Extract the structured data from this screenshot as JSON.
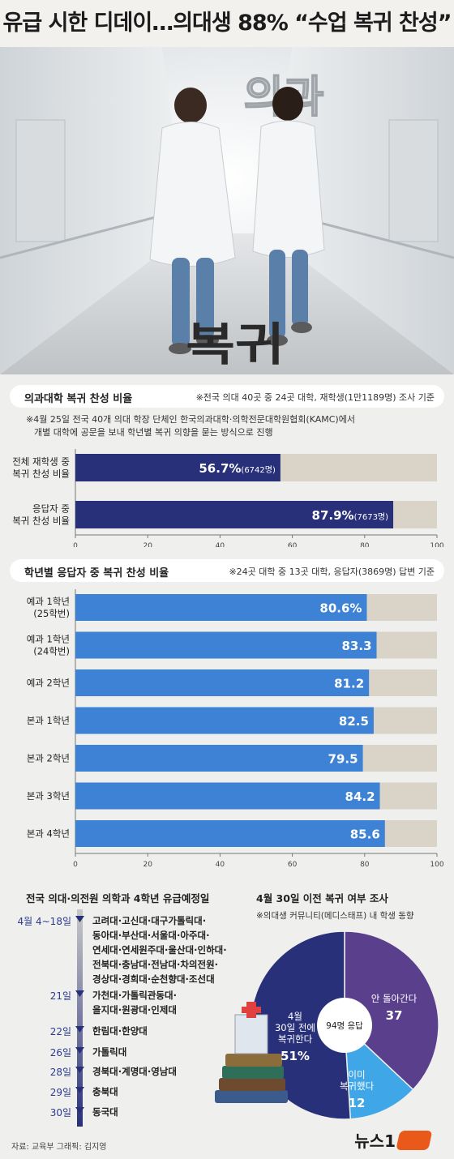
{
  "headline": "유급 시한 디데이…의대생 88% “수업 복귀 찬성”",
  "photo": {
    "sign_top": "의과",
    "floor_text": "복귀"
  },
  "section1": {
    "title": "의과대학 복귀 찬성 비율",
    "note": "※전국 의대 40곳 중 24곳 대학, 재학생(1만1189명) 조사 기준",
    "detail_line1": "※4월 25일 전국 40개 의대 학장 단체인 한국의과대학·의학전문대학원협회(KAMC)에서",
    "detail_line2": "개별 대학에 공문을 보내 학년별 복귀 의향을 묻는 방식으로 진행"
  },
  "section2": {
    "title": "학년별 응답자 중 복귀 찬성 비율",
    "note": "※24곳 대학 중 13곳 대학, 응답자(3869명) 답변 기준"
  },
  "timeline": {
    "title": "전국 의대·의전원 의학과 4학년 유급예정일",
    "rows": [
      {
        "date": "4월 4~18일",
        "lines": [
          "고려대·고신대·대구가톨릭대·",
          "동아대·부산대·서울대·아주대·",
          "연세대·연세원주대·울산대·인하대·",
          "전북대·충남대·전남대·차의전원·",
          "경상대·경희대·순천향대·조선대"
        ]
      },
      {
        "date": "21일",
        "lines": [
          "가천대·가톨릭관동대·",
          "을지대·원광대·인제대"
        ]
      },
      {
        "date": "22일",
        "lines": [
          "한림대·한양대"
        ]
      },
      {
        "date": "26일",
        "lines": [
          "가톨릭대"
        ]
      },
      {
        "date": "28일",
        "lines": [
          "경북대·계명대·영남대"
        ]
      },
      {
        "date": "29일",
        "lines": [
          "충북대"
        ]
      },
      {
        "date": "30일",
        "lines": [
          "동국대"
        ]
      }
    ]
  },
  "pie": {
    "title": "4월 30일 이전 복귀 여부 조사",
    "note": "※의대생 커뮤니티(메디스태프) 내 학생 동향",
    "center": "94명 응답"
  },
  "footer": {
    "source": "자료: 교육부  그래픽: 김지영",
    "logo": "뉴스1"
  },
  "colors": {
    "navy": "#28307a",
    "blue": "#3d82d4",
    "track": "#d9d3c8",
    "purple": "#5a3f8c",
    "lightblue": "#3fa6e8"
  },
  "chart_data": [
    {
      "type": "bar",
      "orientation": "horizontal",
      "title": "의과대학 복귀 찬성 비율",
      "categories": [
        "전체 재학생 중 복귀 찬성 비율",
        "응답자 중 복귀 찬성 비율"
      ],
      "category_lines": [
        [
          "전체 재학생 중",
          "복귀 찬성 비율"
        ],
        [
          "응답자 중",
          "복귀 찬성 비율"
        ]
      ],
      "values": [
        56.7,
        87.9
      ],
      "data_labels": [
        "56.7%",
        "87.9%"
      ],
      "data_sublabels": [
        "(6742명)",
        "(7673명)"
      ],
      "xlim": [
        0,
        100
      ],
      "xticks": [
        0,
        20,
        40,
        60,
        80,
        100
      ]
    },
    {
      "type": "bar",
      "orientation": "horizontal",
      "title": "학년별 응답자 중 복귀 찬성 비율",
      "categories": [
        "예과 1학년 (25학번)",
        "예과 1학년 (24학번)",
        "예과 2학년",
        "본과 1학년",
        "본과 2학년",
        "본과 3학년",
        "본과 4학년"
      ],
      "category_lines": [
        [
          "예과 1학년",
          "(25학번)"
        ],
        [
          "예과 1학년",
          "(24학번)"
        ],
        [
          "예과 2학년"
        ],
        [
          "본과 1학년"
        ],
        [
          "본과 2학년"
        ],
        [
          "본과 3학년"
        ],
        [
          "본과 4학년"
        ]
      ],
      "values": [
        80.6,
        83.3,
        81.2,
        82.5,
        79.5,
        84.2,
        85.6
      ],
      "data_labels": [
        "80.6%",
        "83.3",
        "81.2",
        "82.5",
        "79.5",
        "84.2",
        "85.6"
      ],
      "xlim": [
        0,
        100
      ],
      "xticks": [
        0,
        20,
        40,
        60,
        80,
        100
      ]
    },
    {
      "type": "pie",
      "title": "4월 30일 이전 복귀 여부 조사",
      "slices": [
        {
          "label": "4월 30일 전에 복귀한다",
          "label_lines": [
            "4월",
            "30일 전에",
            "복귀한다"
          ],
          "value": 51,
          "display": "51%",
          "color": "#28307a"
        },
        {
          "label": "안 돌아간다",
          "label_lines": [
            "안 돌아간다"
          ],
          "value": 37,
          "display": "37",
          "color": "#5a3f8c"
        },
        {
          "label": "이미 복귀했다",
          "label_lines": [
            "이미",
            "복귀했다"
          ],
          "value": 12,
          "display": "12",
          "color": "#3fa6e8"
        }
      ]
    }
  ]
}
